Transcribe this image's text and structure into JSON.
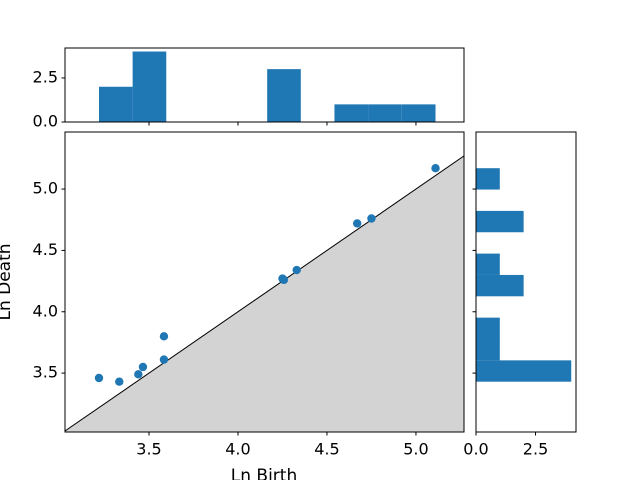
{
  "chart_data": [
    {
      "type": "scatter",
      "x_label": "Ln Birth",
      "y_label": "Ln Death",
      "color": "#1f77b4",
      "x": [
        3.219,
        3.333,
        3.44,
        3.466,
        3.584,
        3.584,
        4.258,
        4.25,
        4.33,
        4.67,
        4.75,
        5.11
      ],
      "values": [
        3.46,
        3.43,
        3.49,
        3.55,
        3.8,
        3.61,
        4.26,
        4.27,
        4.34,
        4.72,
        4.76,
        5.17
      ],
      "xlim": [
        3.028,
        5.27
      ],
      "ylim": [
        3.02,
        5.465
      ],
      "xticks": [
        3.5,
        {
          "value": 4,
          "label": "4.0"
        },
        4.5,
        {
          "value": 5,
          "label": "5.0"
        }
      ],
      "yticks": [
        3.5,
        {
          "value": 4,
          "label": "4.0"
        },
        4.5,
        {
          "value": 5,
          "label": "5.0"
        }
      ],
      "diagonal": true,
      "diagonal_color": "#000000",
      "diagonal_fill": "#d3d3d3"
    },
    {
      "type": "histogram",
      "orientation": "vertical",
      "color": "#1f77b4",
      "bins": [
        3.219,
        3.408,
        3.597,
        3.786,
        3.975,
        4.164,
        4.353,
        4.542,
        4.731,
        4.92,
        5.11
      ],
      "values": [
        2,
        4,
        0,
        0,
        0,
        3,
        0,
        1,
        1,
        1
      ],
      "xlim": [
        3.028,
        5.27
      ],
      "ylim": [
        0,
        4.2
      ],
      "yticks": [
        {
          "value": 0,
          "label": "0.0"
        },
        2.5
      ]
    },
    {
      "type": "histogram",
      "orientation": "horizontal",
      "color": "#1f77b4",
      "bins": [
        3.43,
        3.604,
        3.778,
        3.952,
        4.126,
        4.3,
        4.474,
        4.648,
        4.822,
        4.996,
        5.17
      ],
      "values": [
        4,
        1,
        1,
        0,
        2,
        1,
        0,
        2,
        0,
        1
      ],
      "ylim": [
        3.02,
        5.465
      ],
      "xlim": [
        0,
        4.2
      ],
      "xticks": [
        {
          "value": 0,
          "label": "0.0"
        },
        2.5
      ]
    }
  ]
}
